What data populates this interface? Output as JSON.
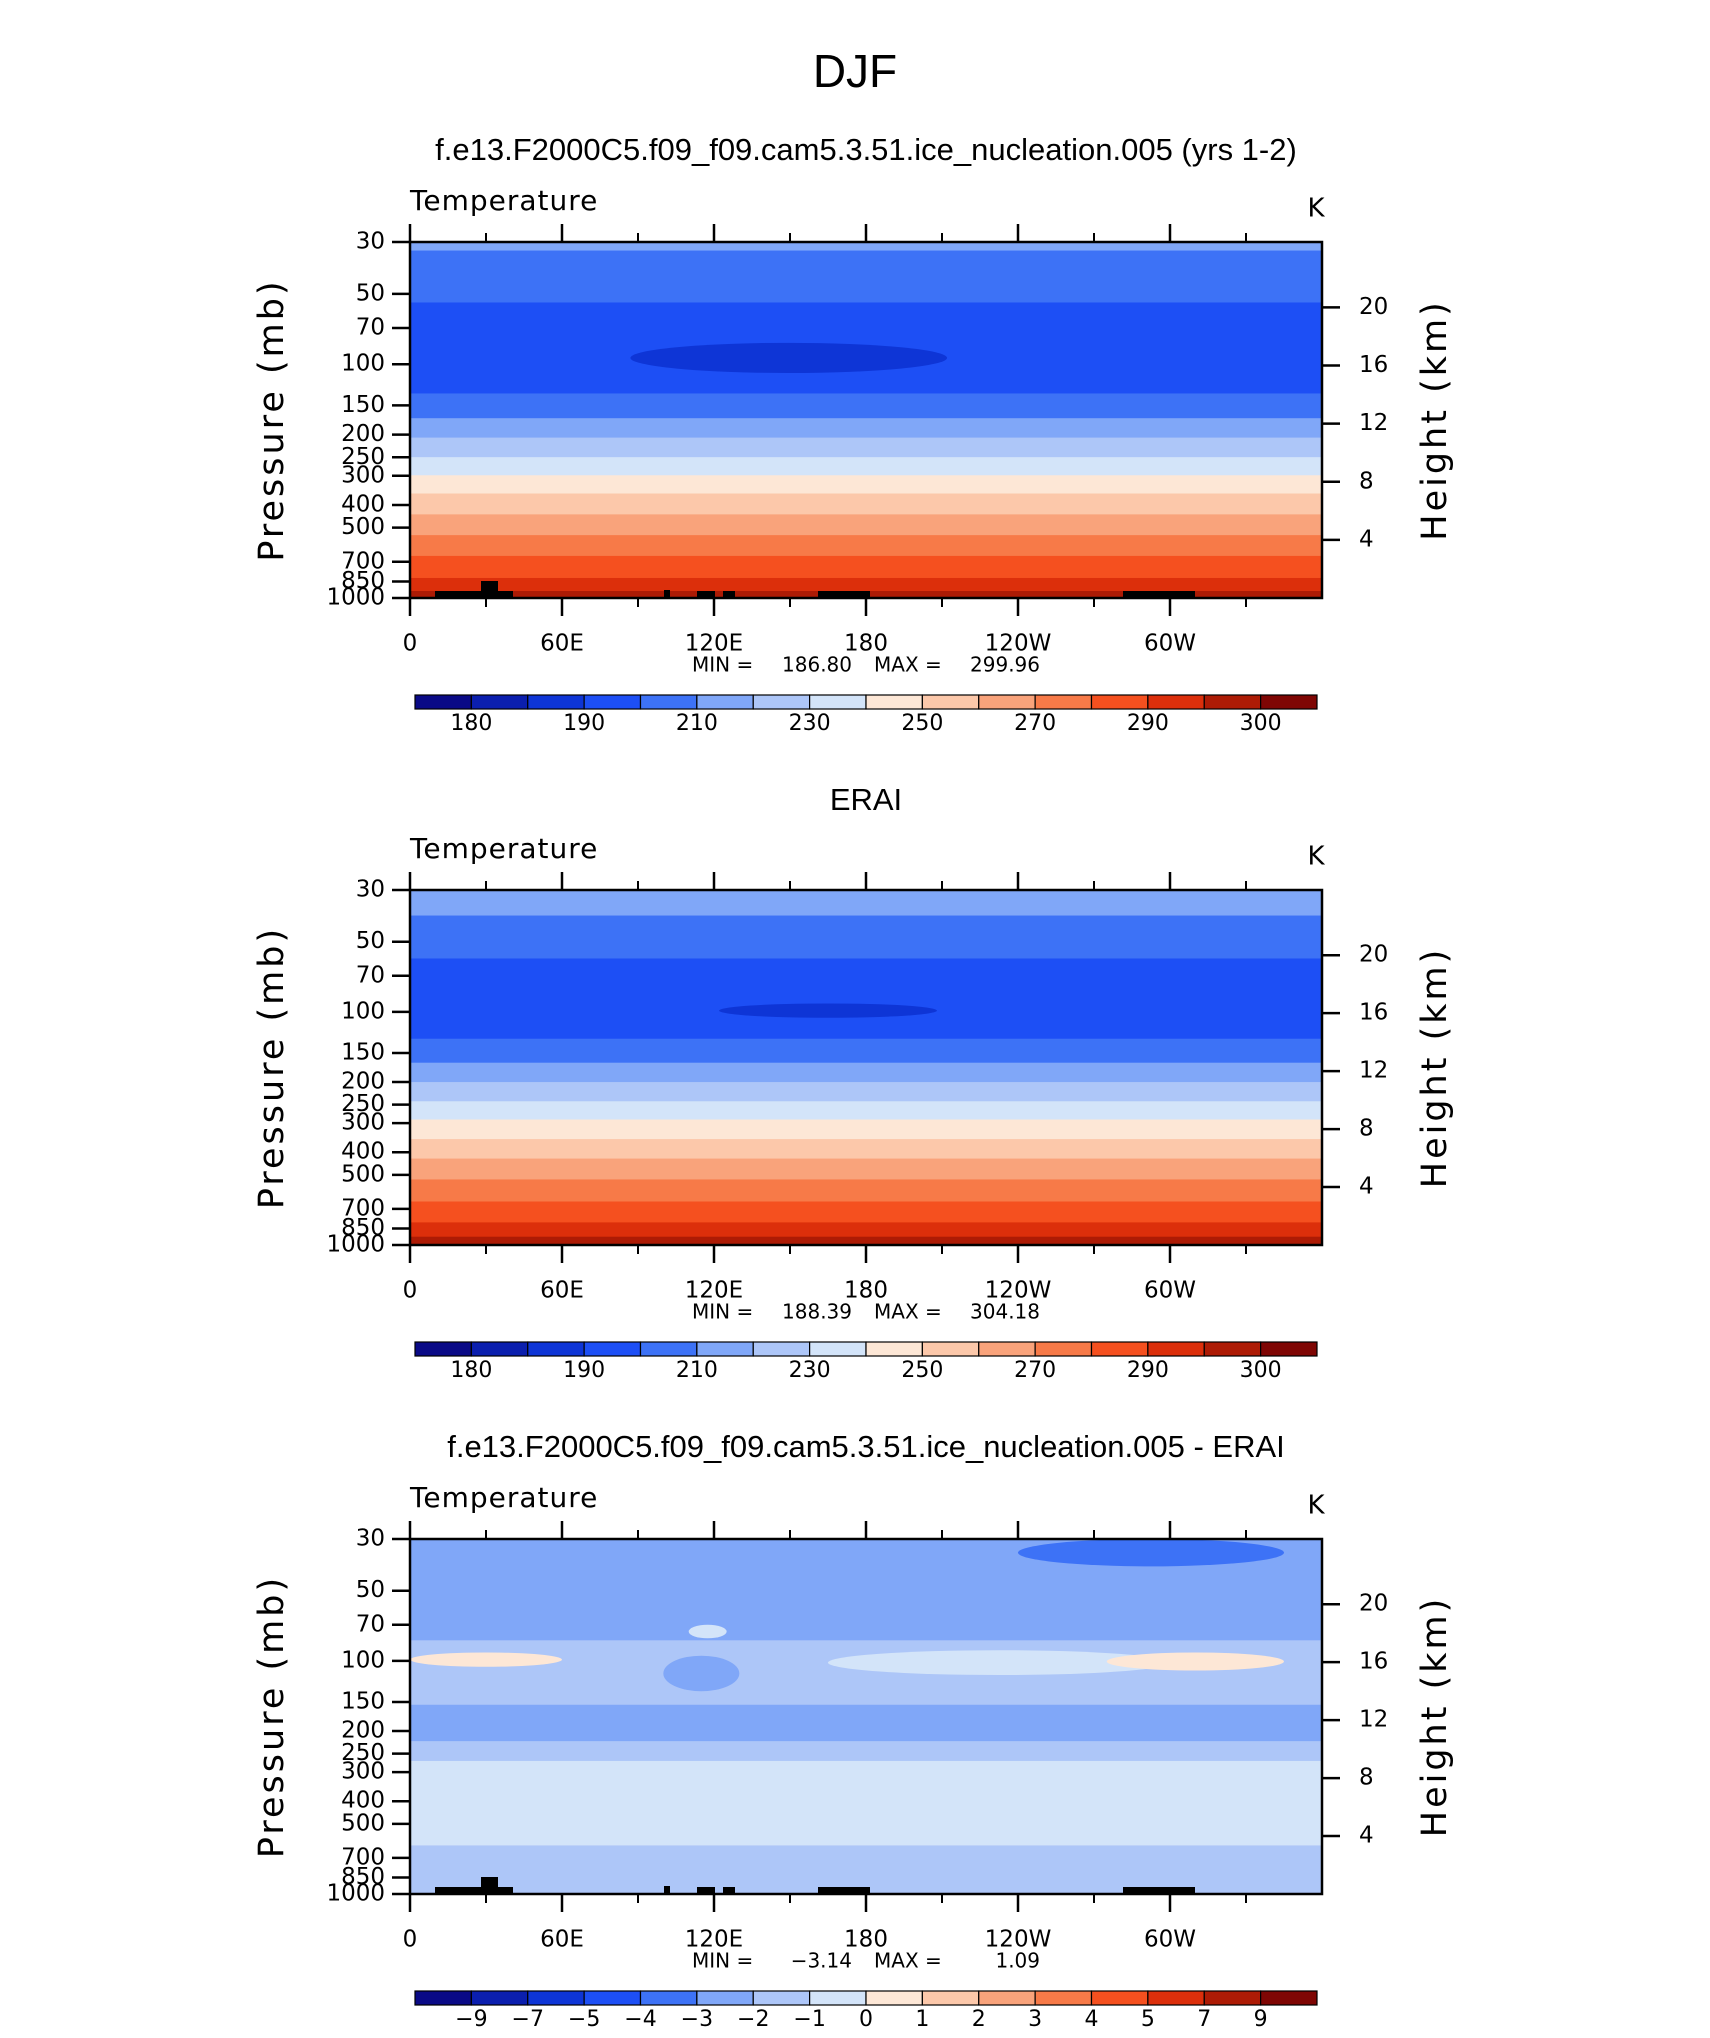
{
  "title": "DJF",
  "chart_data": [
    {
      "type": "contour",
      "title": "f.e13.F2000C5.f09_f09.cam5.3.51.ice_nucleation.005 (yrs 1-2)",
      "label": "Temperature",
      "units": "K",
      "ylabel": "Pressure (mb)",
      "y2label": "Height (km)",
      "xlim": [
        0,
        360
      ],
      "xticks": [
        0,
        {
          "value": 60,
          "label": "60E"
        },
        {
          "value": 120,
          "label": "120E"
        },
        180,
        {
          "value": 240,
          "label": "120W"
        },
        {
          "value": 300,
          "label": "60W"
        }
      ],
      "xminorticks": [
        30,
        90,
        150,
        210,
        270,
        330
      ],
      "ylim": [
        1000,
        30
      ],
      "ylog": true,
      "yticks": [
        30,
        50,
        70,
        100,
        150,
        200,
        250,
        300,
        400,
        500,
        700,
        850,
        1000
      ],
      "y2lim": [
        0,
        24.5
      ],
      "y2ticks": [
        4,
        8,
        12,
        16,
        20
      ],
      "stats": {
        "names": [
          "MIN =",
          "MAX ="
        ],
        "values": [
          186.8,
          299.96
        ],
        "value_labels": [
          "186.80",
          "299.96"
        ]
      },
      "colorbar": {
        "colors": [
          "#0a0a86",
          "#0b1fae",
          "#0e35d6",
          "#1d4ff5",
          "#3d72f6",
          "#80a7f8",
          "#adc6f8",
          "#d3e4f9",
          "#fde7d6",
          "#fcc8aa",
          "#f9a37b",
          "#f77a48",
          "#f5501f",
          "#dc2f0b",
          "#ad1b05",
          "#7f0604"
        ],
        "levels": [
          180,
          null,
          190,
          null,
          210,
          null,
          230,
          null,
          250,
          null,
          270,
          null,
          290,
          null,
          300
        ]
      },
      "bands": [
        {
          "p": [
            30,
            32.8
          ],
          "color": "#80a7f8"
        },
        {
          "p": [
            32.8,
            54.7
          ],
          "color": "#3d72f6"
        },
        {
          "p": [
            54.7,
            134
          ],
          "color": "#1d4ff5"
        },
        {
          "p": [
            134,
            171
          ],
          "color": "#3d72f6"
        },
        {
          "p": [
            171,
            207
          ],
          "color": "#80a7f8"
        },
        {
          "p": [
            207,
            251
          ],
          "color": "#adc6f8"
        },
        {
          "p": [
            251,
            300
          ],
          "color": "#d3e4f9"
        },
        {
          "p": [
            300,
            359
          ],
          "color": "#fde7d6"
        },
        {
          "p": [
            359,
            441
          ],
          "color": "#fcc8aa"
        },
        {
          "p": [
            441,
            541
          ],
          "color": "#f9a37b"
        },
        {
          "p": [
            541,
            664
          ],
          "color": "#f77a48"
        },
        {
          "p": [
            664,
            825
          ],
          "color": "#f5501f"
        },
        {
          "p": [
            825,
            938
          ],
          "color": "#dc2f0b"
        },
        {
          "p": [
            938,
            1000
          ],
          "color": "#ad1b05"
        }
      ],
      "blobs": [
        {
          "lon": [
            87,
            212
          ],
          "p": [
            81,
            109
          ],
          "color": "#0e35d6"
        }
      ]
    },
    {
      "type": "contour",
      "title": "ERAI",
      "label": "Temperature",
      "units": "K",
      "ylabel": "Pressure (mb)",
      "y2label": "Height (km)",
      "xlim": [
        0,
        360
      ],
      "xticks": [
        0,
        {
          "value": 60,
          "label": "60E"
        },
        {
          "value": 120,
          "label": "120E"
        },
        180,
        {
          "value": 240,
          "label": "120W"
        },
        {
          "value": 300,
          "label": "60W"
        }
      ],
      "xminorticks": [
        30,
        90,
        150,
        210,
        270,
        330
      ],
      "ylim": [
        1000,
        30
      ],
      "ylog": true,
      "yticks": [
        30,
        50,
        70,
        100,
        150,
        200,
        250,
        300,
        400,
        500,
        700,
        850,
        1000
      ],
      "y2lim": [
        0,
        24.5
      ],
      "y2ticks": [
        4,
        8,
        12,
        16,
        20
      ],
      "stats": {
        "names": [
          "MIN =",
          "MAX ="
        ],
        "values": [
          188.39,
          304.18
        ],
        "value_labels": [
          "188.39",
          "304.18"
        ]
      },
      "colorbar": {
        "colors": [
          "#0a0a86",
          "#0b1fae",
          "#0e35d6",
          "#1d4ff5",
          "#3d72f6",
          "#80a7f8",
          "#adc6f8",
          "#d3e4f9",
          "#fde7d6",
          "#fcc8aa",
          "#f9a37b",
          "#f77a48",
          "#f5501f",
          "#dc2f0b",
          "#ad1b05",
          "#7f0604"
        ],
        "levels": [
          180,
          null,
          190,
          null,
          210,
          null,
          230,
          null,
          250,
          null,
          270,
          null,
          290,
          null,
          300
        ]
      },
      "bands": [
        {
          "p": [
            30,
            38.8
          ],
          "color": "#80a7f8"
        },
        {
          "p": [
            38.8,
            59.3
          ],
          "color": "#3d72f6"
        },
        {
          "p": [
            59.3,
            131
          ],
          "color": "#1d4ff5"
        },
        {
          "p": [
            131,
            166
          ],
          "color": "#3d72f6"
        },
        {
          "p": [
            166,
            201
          ],
          "color": "#80a7f8"
        },
        {
          "p": [
            201,
            243
          ],
          "color": "#adc6f8"
        },
        {
          "p": [
            243,
            291
          ],
          "color": "#d3e4f9"
        },
        {
          "p": [
            291,
            353
          ],
          "color": "#fde7d6"
        },
        {
          "p": [
            353,
            428
          ],
          "color": "#fcc8aa"
        },
        {
          "p": [
            428,
            526
          ],
          "color": "#f9a37b"
        },
        {
          "p": [
            526,
            654
          ],
          "color": "#f77a48"
        },
        {
          "p": [
            654,
            804
          ],
          "color": "#f5501f"
        },
        {
          "p": [
            804,
            926
          ],
          "color": "#dc2f0b"
        },
        {
          "p": [
            926,
            1000
          ],
          "color": "#ad1b05"
        }
      ],
      "blobs": [
        {
          "lon": [
            122,
            208
          ],
          "p": [
            92,
            106
          ],
          "color": "#0e35d6"
        }
      ]
    },
    {
      "type": "contour",
      "title": "f.e13.F2000C5.f09_f09.cam5.3.51.ice_nucleation.005 - ERAI",
      "label": "Temperature",
      "units": "K",
      "ylabel": "Pressure (mb)",
      "y2label": "Height (km)",
      "xlim": [
        0,
        360
      ],
      "xticks": [
        0,
        {
          "value": 60,
          "label": "60E"
        },
        {
          "value": 120,
          "label": "120E"
        },
        180,
        {
          "value": 240,
          "label": "120W"
        },
        {
          "value": 300,
          "label": "60W"
        }
      ],
      "xminorticks": [
        30,
        90,
        150,
        210,
        270,
        330
      ],
      "ylim": [
        1000,
        30
      ],
      "ylog": true,
      "yticks": [
        30,
        50,
        70,
        100,
        150,
        200,
        250,
        300,
        400,
        500,
        700,
        850,
        1000
      ],
      "y2lim": [
        0,
        24.5
      ],
      "y2ticks": [
        4,
        8,
        12,
        16,
        20
      ],
      "stats": {
        "names": [
          "MIN =",
          "MAX ="
        ],
        "values": [
          -3.14,
          1.09
        ],
        "value_labels": [
          "−3.14",
          "1.09"
        ]
      },
      "colorbar": {
        "colors": [
          "#0a0a86",
          "#0b1fae",
          "#0e35d6",
          "#1d4ff5",
          "#3d72f6",
          "#80a7f8",
          "#adc6f8",
          "#d3e4f9",
          "#fde7d6",
          "#fcc8aa",
          "#f9a37b",
          "#f77a48",
          "#f5501f",
          "#dc2f0b",
          "#ad1b05",
          "#7f0604"
        ],
        "levels": [
          {
            "value": -9,
            "label": "−9"
          },
          {
            "value": -7,
            "label": "−7"
          },
          {
            "value": -5,
            "label": "−5"
          },
          {
            "value": -4,
            "label": "−4"
          },
          {
            "value": -3,
            "label": "−3"
          },
          {
            "value": -2,
            "label": "−2"
          },
          {
            "value": -1,
            "label": "−1"
          },
          0,
          1,
          2,
          3,
          4,
          5,
          7,
          9
        ]
      },
      "bands": [
        {
          "p": [
            30,
            82
          ],
          "color": "#80a7f8"
        },
        {
          "p": [
            82,
            155
          ],
          "color": "#adc6f8"
        },
        {
          "p": [
            155,
            222
          ],
          "color": "#80a7f8"
        },
        {
          "p": [
            222,
            270
          ],
          "color": "#adc6f8"
        },
        {
          "p": [
            270,
            622
          ],
          "color": "#d3e4f9"
        },
        {
          "p": [
            622,
            1000
          ],
          "color": "#adc6f8"
        }
      ],
      "blobs": [
        {
          "lon": [
            240,
            345
          ],
          "p": [
            30,
            39.3
          ],
          "color": "#3d72f6"
        },
        {
          "lon": [
            100,
            130
          ],
          "p": [
            95,
            135
          ],
          "color": "#80a7f8"
        },
        {
          "lon": [
            165,
            300
          ],
          "p": [
            90,
            115
          ],
          "color": "#d3e4f9"
        },
        {
          "lon": [
            110,
            125
          ],
          "p": [
            70,
            80
          ],
          "color": "#d3e4f9"
        },
        {
          "lon": [
            0,
            60
          ],
          "p": [
            92,
            106
          ],
          "color": "#fde7d6"
        },
        {
          "lon": [
            275,
            345
          ],
          "p": [
            92,
            110
          ],
          "color": "#fde7d6"
        }
      ]
    }
  ]
}
